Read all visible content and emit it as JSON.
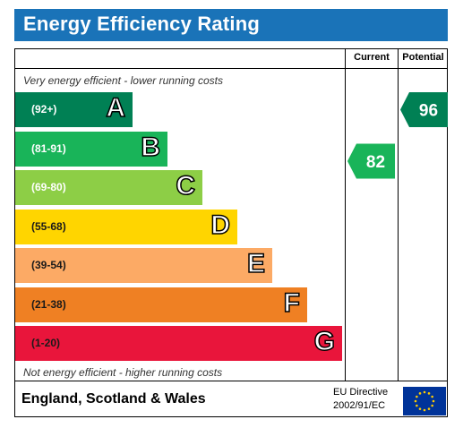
{
  "header": {
    "title": "Energy Efficiency Rating"
  },
  "columns": {
    "current": "Current",
    "potential": "Potential"
  },
  "notes": {
    "top": "Very energy efficient - lower running costs",
    "bottom": "Not energy efficient - higher running costs"
  },
  "footer": {
    "region": "England, Scotland & Wales",
    "directive_line1": "EU Directive",
    "directive_line2": "2002/91/EC",
    "flag_icon": "eu-flag-icon"
  },
  "chart_data": {
    "type": "bar",
    "categories": [
      "A",
      "B",
      "C",
      "D",
      "E",
      "F",
      "G"
    ],
    "ranges": [
      "(92+)",
      "(81-91)",
      "(69-80)",
      "(55-68)",
      "(39-54)",
      "(21-38)",
      "(1-20)"
    ],
    "colors": [
      "#008054",
      "#19b459",
      "#8dce46",
      "#ffd500",
      "#fcaa65",
      "#ef8023",
      "#e9153b"
    ],
    "current": {
      "value": 82,
      "band": "B",
      "color": "#19b459"
    },
    "potential": {
      "value": 96,
      "band": "A",
      "color": "#008054"
    }
  }
}
